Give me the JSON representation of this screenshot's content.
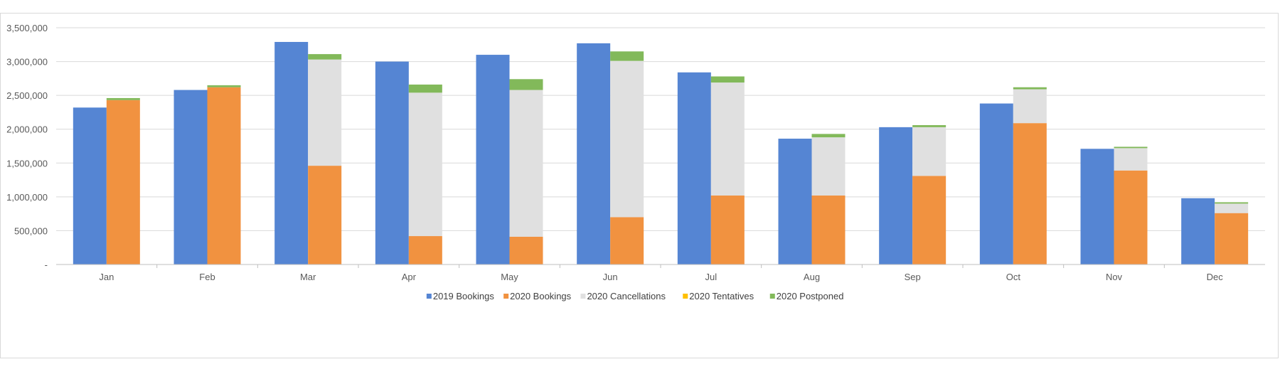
{
  "chart_data": {
    "type": "bar",
    "stacked_groups": true,
    "categories": [
      "Jan",
      "Feb",
      "Mar",
      "Apr",
      "May",
      "Jun",
      "Jul",
      "Aug",
      "Sep",
      "Oct",
      "Nov",
      "Dec"
    ],
    "ylim": [
      0,
      3500000
    ],
    "y_ticks": [
      0,
      500000,
      1000000,
      1500000,
      2000000,
      2500000,
      3000000,
      3500000
    ],
    "y_tick_labels": [
      "-",
      "500,000",
      "1,000,000",
      "1,500,000",
      "2,000,000",
      "2,500,000",
      "3,000,000",
      "3,500,000"
    ],
    "grid": true,
    "legend_position": "bottom",
    "series": [
      {
        "name": "2019 Bookings",
        "stack": "2019",
        "color": "#5585d3",
        "values": [
          2320000,
          2580000,
          3290000,
          3000000,
          3100000,
          3270000,
          2840000,
          1860000,
          2030000,
          2380000,
          1710000,
          980000
        ]
      },
      {
        "name": "2020 Bookings",
        "stack": "2020",
        "color": "#f19240",
        "values": [
          2430000,
          2620000,
          1460000,
          420000,
          410000,
          700000,
          1020000,
          1020000,
          1310000,
          2090000,
          1390000,
          760000
        ]
      },
      {
        "name": "2020 Cancellations",
        "stack": "2020",
        "color": "#e0e0e0",
        "values": [
          0,
          0,
          1570000,
          2120000,
          2170000,
          2310000,
          1670000,
          860000,
          720000,
          500000,
          330000,
          140000
        ]
      },
      {
        "name": "2020 Tentatives",
        "stack": "2020",
        "color": "#ffc000",
        "values": [
          0,
          0,
          0,
          0,
          0,
          0,
          0,
          0,
          0,
          0,
          0,
          0
        ]
      },
      {
        "name": "2020 Postponed",
        "stack": "2020",
        "color": "#82b95a",
        "values": [
          30000,
          30000,
          80000,
          120000,
          160000,
          140000,
          90000,
          50000,
          30000,
          30000,
          20000,
          20000
        ]
      }
    ]
  }
}
